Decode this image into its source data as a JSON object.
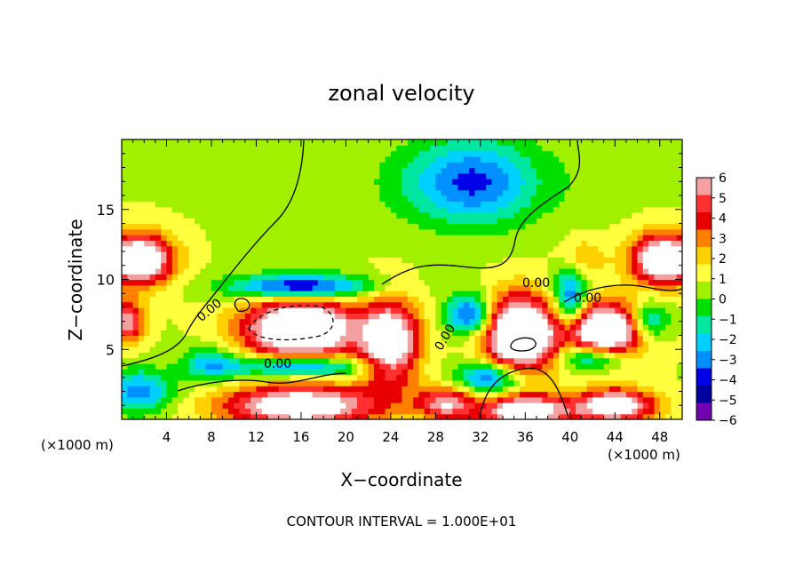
{
  "chart_data": {
    "type": "heatmap",
    "title": "zonal velocity",
    "xlabel": "X−coordinate",
    "ylabel": "Z−coordinate",
    "x_unit_left": "(×1000 m)",
    "x_unit_right": "(×1000 m)",
    "xlim": [
      0,
      50
    ],
    "ylim": [
      0,
      20
    ],
    "x_ticks": [
      4,
      8,
      12,
      16,
      20,
      24,
      28,
      32,
      36,
      40,
      44,
      48
    ],
    "y_ticks": [
      5,
      10,
      15
    ],
    "colorbar": {
      "min": -6,
      "max": 6,
      "labels": [
        "6",
        "5",
        "4",
        "3",
        "2",
        "1",
        "0",
        "−1",
        "−2",
        "−3",
        "−4",
        "−5",
        "−6"
      ],
      "colors": [
        "#f4a0a0",
        "#ff3030",
        "#e80000",
        "#ff8000",
        "#ffd000",
        "#ffff40",
        "#a0f000",
        "#00e000",
        "#00e8a0",
        "#00d0ff",
        "#0090ff",
        "#0000e8",
        "#0000a0",
        "#7000b0"
      ]
    },
    "contour_labels": [
      "0.00",
      "0.00",
      "0.00",
      "0.00",
      "0.00"
    ],
    "contour_interval": "CONTOUR INTERVAL = 1.000E+01",
    "blobs": [
      {
        "x": 16,
        "z": 6.5,
        "rx": 5,
        "rz": 2.2,
        "v": 9
      },
      {
        "x": 16,
        "z": 1.0,
        "rx": 7,
        "rz": 1.5,
        "v": 7
      },
      {
        "x": 24,
        "z": 5.5,
        "rx": 2.6,
        "rz": 3,
        "v": 7
      },
      {
        "x": 29,
        "z": 1.2,
        "rx": 2.5,
        "rz": 1.2,
        "v": 5
      },
      {
        "x": 35.5,
        "z": 6.0,
        "rx": 3.2,
        "rz": 2.8,
        "v": 9
      },
      {
        "x": 36,
        "z": 0.6,
        "rx": 4,
        "rz": 1.2,
        "v": 7
      },
      {
        "x": 43,
        "z": 6.3,
        "rx": 3.6,
        "rz": 2.0,
        "v": 9
      },
      {
        "x": 44,
        "z": 1.0,
        "rx": 3.5,
        "rz": 1.2,
        "v": 7
      },
      {
        "x": 1.5,
        "z": 11.5,
        "rx": 3,
        "rz": 1.8,
        "v": 8
      },
      {
        "x": 48.5,
        "z": 11.5,
        "rx": 3,
        "rz": 1.8,
        "v": 8
      },
      {
        "x": 0.5,
        "z": 7,
        "rx": 1.5,
        "rz": 1.5,
        "v": 5
      },
      {
        "x": 41,
        "z": 11.5,
        "rx": 2,
        "rz": 1.5,
        "v": 2
      },
      {
        "x": 16,
        "z": 9.5,
        "rx": 6,
        "rz": 0.9,
        "v": -6
      },
      {
        "x": 16,
        "z": 3.8,
        "rx": 6,
        "rz": 0.8,
        "v": -5
      },
      {
        "x": 31,
        "z": 7.5,
        "rx": 2,
        "rz": 1.5,
        "v": -5
      },
      {
        "x": 33,
        "z": 3.0,
        "rx": 3,
        "rz": 1.2,
        "v": -5
      },
      {
        "x": 40,
        "z": 8.5,
        "rx": 1.5,
        "rz": 2.5,
        "v": -5
      },
      {
        "x": 42,
        "z": 4.5,
        "rx": 3,
        "rz": 1,
        "v": -5
      },
      {
        "x": 47,
        "z": 7,
        "rx": 1.8,
        "rz": 1.4,
        "v": -4
      },
      {
        "x": 1.5,
        "z": 2,
        "rx": 3,
        "rz": 1.5,
        "v": -4
      },
      {
        "x": 8,
        "z": 4,
        "rx": 2.5,
        "rz": 1.2,
        "v": -3
      },
      {
        "x": 32,
        "z": 17,
        "rx": 5,
        "rz": 3,
        "v": -3.5
      },
      {
        "x": 28,
        "z": 17,
        "rx": 6,
        "rz": 3,
        "v": -1.5
      },
      {
        "x": 40,
        "z": 17,
        "rx": 5,
        "rz": 3,
        "v": -0.5
      }
    ],
    "background": 0.8
  }
}
